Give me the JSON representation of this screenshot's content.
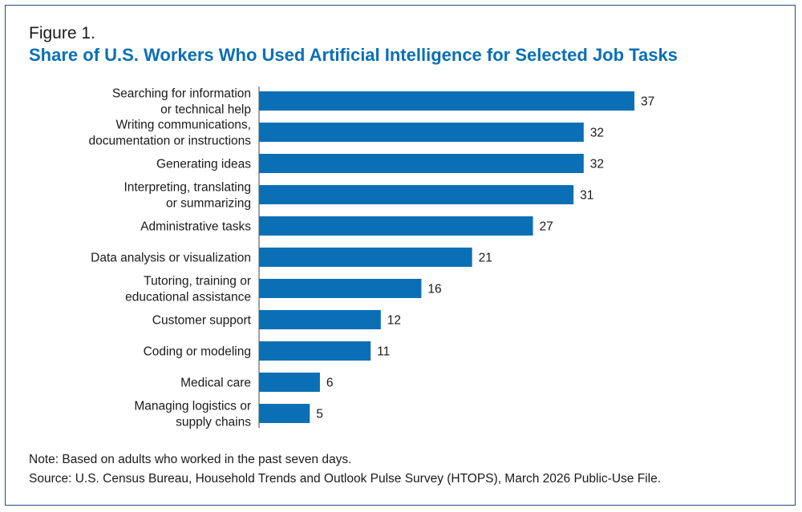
{
  "figure_label": "Figure 1.",
  "title": "Share of U.S. Workers Who Used Artificial Intelligence for Selected Job Tasks",
  "note": "Note: Based on adults who worked in the past seven days.",
  "source": "Source: U.S. Census Bureau, Household Trends and Outlook Pulse Survey (HTOPS), March 2026 Public-Use File.",
  "colors": {
    "bar": "#0a6fb5",
    "title": "#0a6fb5",
    "frame": "#1f4e79"
  },
  "chart_data": {
    "type": "bar",
    "orientation": "horizontal",
    "categories": [
      [
        "Searching for information",
        "or technical help"
      ],
      [
        "Writing communications,",
        "documentation or instructions"
      ],
      [
        "Generating ideas"
      ],
      [
        "Interpreting, translating",
        "or summarizing"
      ],
      [
        "Administrative tasks"
      ],
      [
        "Data analysis or visualization"
      ],
      [
        "Tutoring, training or",
        "educational assistance"
      ],
      [
        "Customer support"
      ],
      [
        "Coding or modeling"
      ],
      [
        "Medical care"
      ],
      [
        "Managing logistics or",
        "supply chains"
      ]
    ],
    "values": [
      37,
      32,
      32,
      31,
      27,
      21,
      16,
      12,
      11,
      6,
      5
    ],
    "xlim": [
      0,
      40
    ],
    "grid": false,
    "legend": "none"
  }
}
